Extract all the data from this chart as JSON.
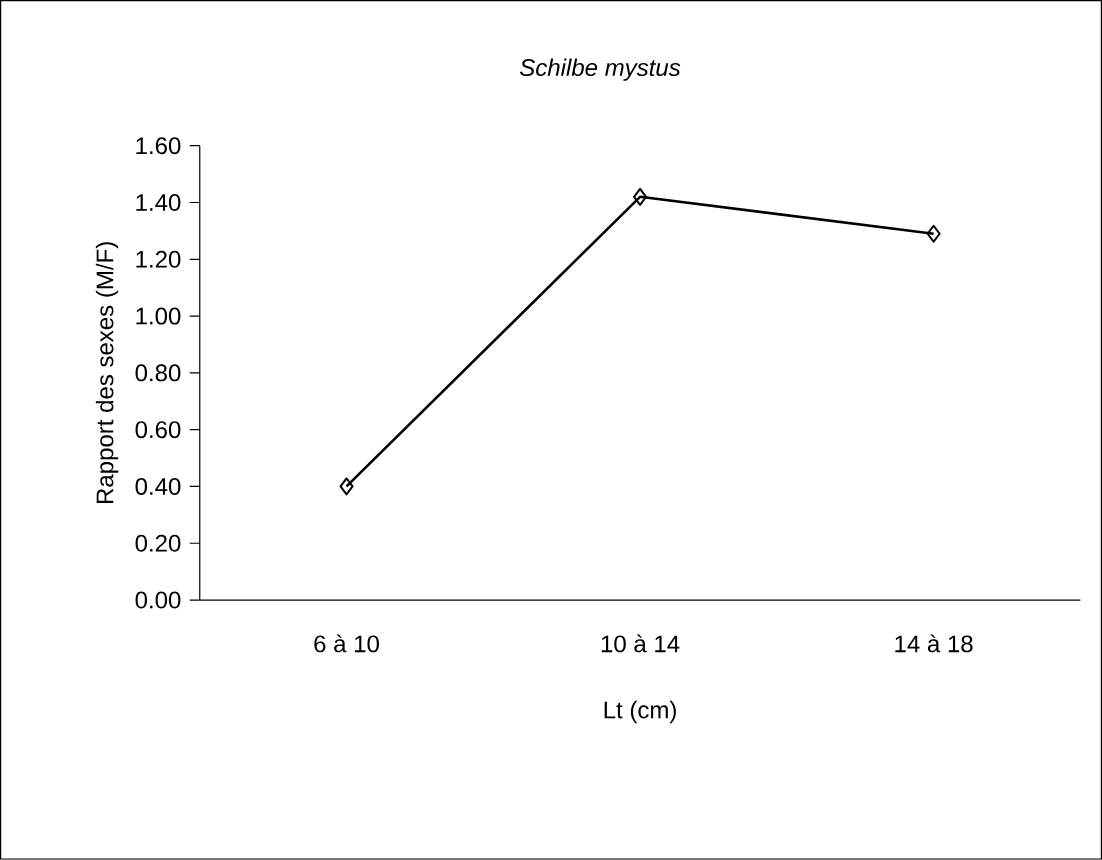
{
  "chart_data": {
    "type": "line",
    "title": "Schilbe mystus",
    "xlabel": "Lt (cm)",
    "ylabel": "Rapport des sexes (M/F)",
    "categories": [
      "6 à 10",
      "10 à 14",
      "14 à 18"
    ],
    "series": [
      {
        "color": "#000000",
        "values": [
          0.4,
          1.42,
          1.29
        ]
      }
    ],
    "ylim": [
      0,
      1.6
    ],
    "yticks": [
      {
        "value": 0,
        "label": "0.00"
      },
      {
        "value": 0.2,
        "label": "0.20"
      },
      {
        "value": 0.4,
        "label": "0.40"
      },
      {
        "value": 0.6,
        "label": "0.60"
      },
      {
        "value": 0.8,
        "label": "0.80"
      },
      {
        "value": 1.0,
        "label": "1.00"
      },
      {
        "value": 1.2,
        "label": "1.20"
      },
      {
        "value": 1.4,
        "label": "1.40"
      },
      {
        "value": 1.6,
        "label": "1.60"
      }
    ],
    "grid": false,
    "marker": "diamond",
    "line_style": "solid"
  }
}
